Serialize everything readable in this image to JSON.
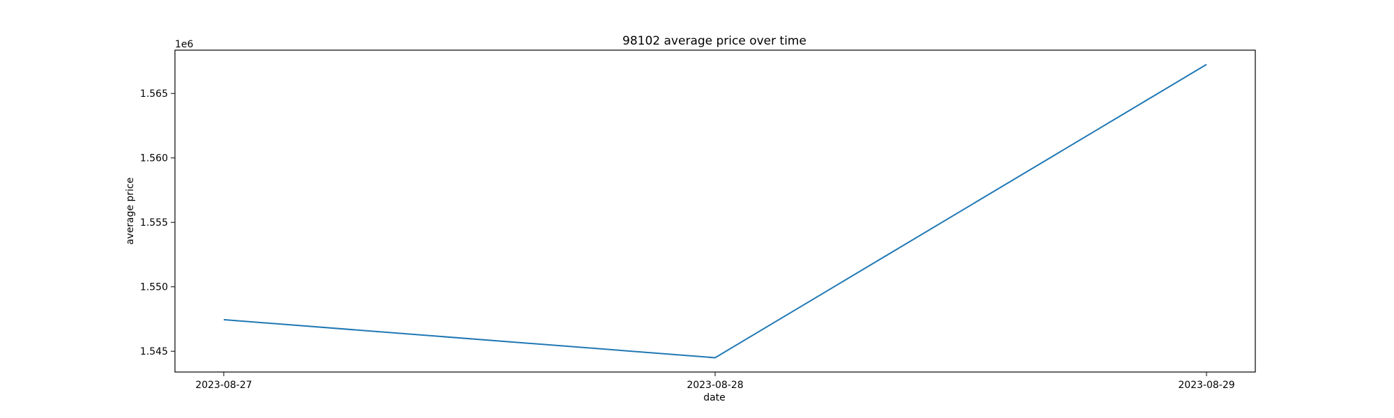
{
  "chart_data": {
    "type": "line",
    "title": "98102 average price over time",
    "xlabel": "date",
    "ylabel": "average price",
    "y_offset_label": "1e6",
    "x": [
      "2023-08-27",
      "2023-08-28",
      "2023-08-29"
    ],
    "series": [
      {
        "values": [
          1547450,
          1544500,
          1567250
        ],
        "color": "#1f77b4"
      }
    ],
    "ylim": [
      1543390,
      1568360
    ],
    "yticks": [
      1545000,
      1550000,
      1555000,
      1560000,
      1565000
    ],
    "ytick_labels": [
      "1.545",
      "1.550",
      "1.555",
      "1.560",
      "1.565"
    ],
    "grid": false,
    "legend": "none"
  }
}
